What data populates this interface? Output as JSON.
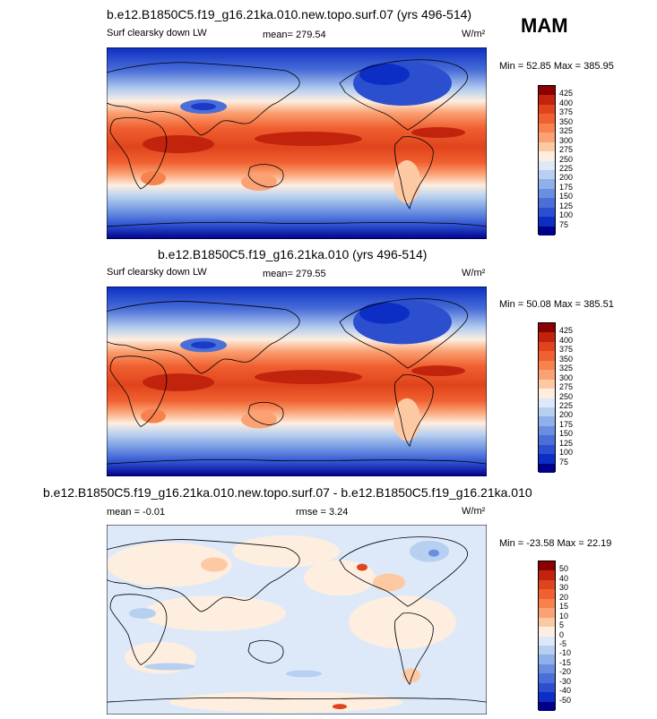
{
  "season": "MAM",
  "panels": [
    {
      "title": "b.e12.B1850C5.f19_g16.21ka.010.new.topo.surf.07 (yrs 496-514)",
      "left_label": "Surf clearsky down LW",
      "center_label": "mean= 279.54",
      "units": "W/m²",
      "minmax": "Min =  52.85 Max = 385.95",
      "levels": [
        "425",
        "400",
        "375",
        "350",
        "325",
        "300",
        "275",
        "250",
        "225",
        "200",
        "175",
        "150",
        "125",
        "100",
        "75"
      ],
      "colors": [
        "#8b0000",
        "#c2230d",
        "#e0441c",
        "#f06030",
        "#f7824d",
        "#fba274",
        "#fdc9a3",
        "#fdeee0",
        "#dde9f8",
        "#b7cff0",
        "#8fb0e8",
        "#6a8fe0",
        "#4a6fd8",
        "#2c4fd0",
        "#0c2ec4",
        "#00008b"
      ]
    },
    {
      "title": "b.e12.B1850C5.f19_g16.21ka.010 (yrs 496-514)",
      "left_label": "Surf clearsky down LW",
      "center_label": "mean= 279.55",
      "units": "W/m²",
      "minmax": "Min =  50.08 Max = 385.51",
      "levels": [
        "425",
        "400",
        "375",
        "350",
        "325",
        "300",
        "275",
        "250",
        "225",
        "200",
        "175",
        "150",
        "125",
        "100",
        "75"
      ],
      "colors": [
        "#8b0000",
        "#c2230d",
        "#e0441c",
        "#f06030",
        "#f7824d",
        "#fba274",
        "#fdc9a3",
        "#fdeee0",
        "#dde9f8",
        "#b7cff0",
        "#8fb0e8",
        "#6a8fe0",
        "#4a6fd8",
        "#2c4fd0",
        "#0c2ec4",
        "#00008b"
      ]
    },
    {
      "title": "b.e12.B1850C5.f19_g16.21ka.010.new.topo.surf.07 - b.e12.B1850C5.f19_g16.21ka.010",
      "left_label": "mean =  -0.01",
      "center_label": "rmse =   3.24",
      "units": "W/m²",
      "minmax": "Min = -23.58 Max =  22.19",
      "levels": [
        "50",
        "40",
        "30",
        "20",
        "15",
        "10",
        "5",
        "0",
        "-5",
        "-10",
        "-15",
        "-20",
        "-30",
        "-40",
        "-50"
      ],
      "colors": [
        "#8b0000",
        "#c2230d",
        "#e0441c",
        "#f06030",
        "#f7824d",
        "#fba274",
        "#fdc9a3",
        "#fdeee0",
        "#dde9f8",
        "#b7cff0",
        "#8fb0e8",
        "#6a8fe0",
        "#4a6fd8",
        "#2c4fd0",
        "#0c2ec4",
        "#00008b"
      ]
    }
  ]
}
